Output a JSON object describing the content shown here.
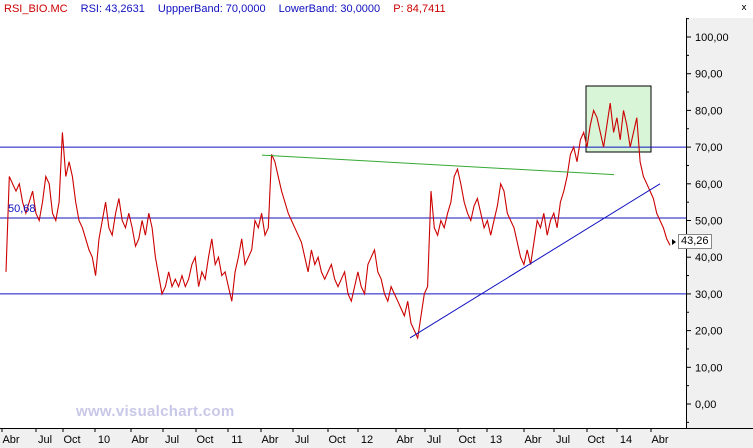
{
  "header": {
    "symbol": "RSI_BIO.MC",
    "rsi": "RSI: 43,2631",
    "upper": "UppperBand: 70,0000",
    "lower": "LowerBand: 30,0000",
    "p": "P: 84,7411",
    "close_symbol": "x"
  },
  "watermark": "www.visualchart.com",
  "level_label": "50,68",
  "last_value": "43,26",
  "colors": {
    "rsi_line": "#cc0000",
    "bands": "#1010c0",
    "trend_green": "#33aa33",
    "trend_blue": "#1010c0",
    "box_fill": "#d8f5d8"
  },
  "chart_data": {
    "type": "line",
    "title": "",
    "xlabel": "",
    "ylabel": "",
    "ylim": [
      -6,
      106
    ],
    "y_ticks": [
      "100,00",
      "90,00",
      "80,00",
      "70,00",
      "60,00",
      "50,00",
      "40,00",
      "30,00",
      "20,00",
      "10,00",
      "0,00"
    ],
    "x_ticks": [
      "Abr",
      "Jul",
      "Oct",
      "10",
      "Abr",
      "Jul",
      "Oct",
      "11",
      "Abr",
      "Jul",
      "Oct",
      "12",
      "Abr",
      "Jul",
      "Oct",
      "13",
      "Abr",
      "Jul",
      "Oct",
      "14",
      "Abr"
    ],
    "bands": [
      70,
      50.68,
      30
    ],
    "series": [
      {
        "values": [
          36,
          62,
          60,
          58,
          60,
          55,
          52,
          55,
          58,
          52,
          50,
          55,
          62,
          60,
          52,
          50,
          55,
          74,
          62,
          66,
          62,
          55,
          50,
          48,
          45,
          42,
          40,
          35,
          45,
          50,
          55,
          48,
          46,
          52,
          56,
          50,
          48,
          52,
          48,
          43,
          45,
          50,
          46,
          52,
          48,
          40,
          35,
          30,
          32,
          36,
          32,
          34,
          32,
          35,
          32,
          34,
          38,
          40,
          32,
          36,
          34,
          40,
          45,
          38,
          40,
          35,
          36,
          32,
          28,
          36,
          40,
          45,
          38,
          40,
          42,
          50,
          48,
          52,
          46,
          48,
          68,
          66,
          62,
          58,
          55,
          52,
          50,
          48,
          46,
          44,
          40,
          36,
          42,
          38,
          40,
          36,
          34,
          36,
          38,
          34,
          32,
          34,
          36,
          30,
          28,
          32,
          36,
          32,
          30,
          38,
          40,
          42,
          36,
          34,
          30,
          28,
          32,
          30,
          28,
          26,
          24,
          28,
          22,
          20,
          18,
          24,
          30,
          32,
          58,
          48,
          46,
          50,
          48,
          52,
          55,
          62,
          64,
          60,
          55,
          52,
          50,
          54,
          56,
          52,
          48,
          50,
          46,
          50,
          54,
          60,
          58,
          52,
          50,
          48,
          44,
          40,
          38,
          42,
          38,
          44,
          50,
          48,
          52,
          46,
          50,
          52,
          48,
          55,
          58,
          62,
          68,
          70,
          66,
          72,
          74,
          70,
          76,
          80,
          78,
          74,
          70,
          76,
          82,
          74,
          78,
          72,
          80,
          76,
          70,
          74,
          78,
          66,
          62,
          60,
          58,
          56,
          52,
          50,
          48,
          45,
          43.26
        ]
      }
    ],
    "annotations": {
      "green_trendline": [
        [
          0.0,
          67.8
        ],
        [
          0.9,
          62.5
        ]
      ],
      "blue_trendline": [
        [
          0.4,
          18
        ],
        [
          1.0,
          60
        ]
      ]
    }
  }
}
